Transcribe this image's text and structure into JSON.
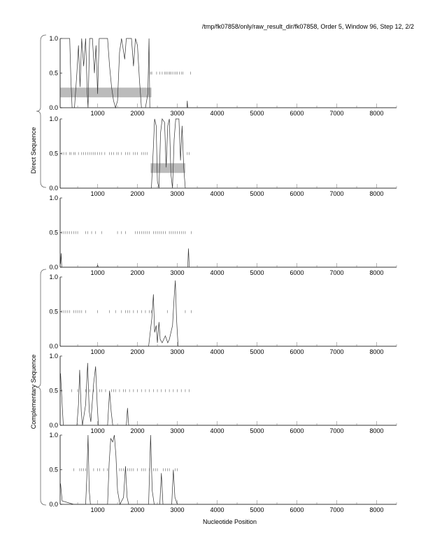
{
  "chart_data": {
    "type": "line",
    "title": "/tmp/fk07858/only/raw_result_dir/fk07858, Order 5, Window 96, Step 12, 2/2",
    "xlabel": "Nucleotide Position",
    "group_labels": [
      "Direct Sequence",
      "Complementary Sequence"
    ],
    "xlim": [
      60,
      8500
    ],
    "ylim": [
      0,
      1
    ],
    "xticks": [
      1000,
      2000,
      3000,
      4000,
      5000,
      6000,
      7000,
      8000
    ],
    "yticks": [
      "0.0",
      "0.5",
      "1.0"
    ],
    "panels": [
      {
        "name": "direct-frame-1",
        "group": "Direct Sequence",
        "series": [
          [
            70,
            1
          ],
          [
            300,
            1
          ],
          [
            330,
            0.4
          ],
          [
            360,
            0
          ],
          [
            420,
            0
          ],
          [
            480,
            0.5
          ],
          [
            520,
            0.9
          ],
          [
            560,
            0.3
          ],
          [
            600,
            1
          ],
          [
            650,
            0.6
          ],
          [
            700,
            1
          ],
          [
            740,
            0.2
          ],
          [
            760,
            0
          ],
          [
            800,
            1
          ],
          [
            870,
            1
          ],
          [
            920,
            0.5
          ],
          [
            960,
            0.9
          ],
          [
            1000,
            0.2
          ],
          [
            1040,
            1
          ],
          [
            1250,
            1
          ],
          [
            1300,
            0.6
          ],
          [
            1350,
            0.3
          ],
          [
            1400,
            0.1
          ],
          [
            1450,
            0
          ],
          [
            1500,
            0.1
          ],
          [
            1550,
            0.8
          ],
          [
            1600,
            1
          ],
          [
            1680,
            0.7
          ],
          [
            1720,
            1
          ],
          [
            1850,
            1
          ],
          [
            1900,
            0.6
          ],
          [
            1950,
            1
          ],
          [
            2000,
            0.9
          ],
          [
            2050,
            0.4
          ],
          [
            2100,
            0
          ],
          [
            2200,
            0
          ],
          [
            2260,
            0.2
          ],
          [
            2290,
            1
          ],
          [
            2310,
            0
          ],
          [
            3240,
            0
          ],
          [
            3250,
            0.1
          ],
          [
            3260,
            0
          ],
          [
            8500,
            0
          ]
        ],
        "stops": [
          2300,
          2330,
          2360,
          2480,
          2560,
          2620,
          2680,
          2720,
          2760,
          2800,
          2830,
          2870,
          2920,
          2960,
          3000,
          3050,
          3100,
          3140,
          3330
        ],
        "genes": [
          [
            70,
            2350,
            0.15,
            0.29
          ]
        ]
      },
      {
        "name": "direct-frame-2",
        "group": "Direct Sequence",
        "series": [
          [
            70,
            0
          ],
          [
            2350,
            0
          ],
          [
            2400,
            0.6
          ],
          [
            2430,
            1
          ],
          [
            2470,
            0.9
          ],
          [
            2500,
            0.1
          ],
          [
            2540,
            0
          ],
          [
            2580,
            0.8
          ],
          [
            2620,
            1
          ],
          [
            2680,
            0.95
          ],
          [
            2720,
            0.3
          ],
          [
            2760,
            0.9
          ],
          [
            2800,
            1
          ],
          [
            2840,
            0.2
          ],
          [
            2880,
            0
          ],
          [
            2920,
            0.7
          ],
          [
            2960,
            1
          ],
          [
            3040,
            1
          ],
          [
            3080,
            0.4
          ],
          [
            3120,
            0.9
          ],
          [
            3160,
            0.3
          ],
          [
            3200,
            0
          ],
          [
            8500,
            0
          ]
        ],
        "stops": [
          100,
          150,
          210,
          300,
          330,
          400,
          440,
          520,
          600,
          650,
          700,
          750,
          800,
          850,
          900,
          940,
          1000,
          1050,
          1100,
          1180,
          1300,
          1350,
          1400,
          1480,
          1520,
          1600,
          1700,
          1750,
          1800,
          1900,
          1950,
          2000,
          2100,
          2150,
          2200,
          2250,
          3250,
          3300
        ],
        "genes": [
          [
            2330,
            3200,
            0.22,
            0.36
          ]
        ]
      },
      {
        "name": "direct-frame-3",
        "group": "Direct Sequence",
        "series": [
          [
            70,
            0.05
          ],
          [
            85,
            0.2
          ],
          [
            100,
            0
          ],
          [
            980,
            0
          ],
          [
            1000,
            0.03
          ],
          [
            1020,
            0
          ],
          [
            3260,
            0
          ],
          [
            3280,
            0.27
          ],
          [
            3300,
            0
          ],
          [
            8500,
            0
          ]
        ],
        "stops": [
          100,
          150,
          200,
          250,
          300,
          350,
          400,
          450,
          500,
          700,
          750,
          850,
          950,
          1100,
          1500,
          1600,
          1700,
          1950,
          2000,
          2050,
          2100,
          2150,
          2200,
          2250,
          2300,
          2400,
          2450,
          2500,
          2550,
          2600,
          2650,
          2700,
          2800,
          2850,
          2900,
          2950,
          3000,
          3050,
          3100,
          3150,
          3200,
          3350
        ],
        "genes": []
      },
      {
        "name": "complementary-frame-1",
        "group": "Complementary Sequence",
        "series": [
          [
            70,
            0
          ],
          [
            2280,
            0
          ],
          [
            2320,
            0.2
          ],
          [
            2360,
            0.4
          ],
          [
            2400,
            0.75
          ],
          [
            2430,
            0.2
          ],
          [
            2470,
            0.3
          ],
          [
            2500,
            0.05
          ],
          [
            2540,
            0.35
          ],
          [
            2570,
            0.1
          ],
          [
            2620,
            0.05
          ],
          [
            2700,
            0.15
          ],
          [
            2760,
            0.05
          ],
          [
            2800,
            0.1
          ],
          [
            2880,
            0.3
          ],
          [
            2920,
            0.7
          ],
          [
            2950,
            0.95
          ],
          [
            2980,
            0.4
          ],
          [
            3020,
            0
          ],
          [
            8500,
            0
          ]
        ],
        "stops": [
          100,
          150,
          200,
          250,
          300,
          400,
          450,
          500,
          550,
          600,
          700,
          1000,
          1300,
          1450,
          1600,
          1700,
          1750,
          1800,
          1900,
          2000,
          2100,
          2200,
          2300,
          2350,
          2750,
          3200,
          3350
        ],
        "genes": []
      },
      {
        "name": "complementary-frame-2",
        "group": "Complementary Sequence",
        "series": [
          [
            70,
            0.75
          ],
          [
            110,
            0.3
          ],
          [
            140,
            0
          ],
          [
            480,
            0
          ],
          [
            520,
            0.3
          ],
          [
            550,
            0.8
          ],
          [
            590,
            0.2
          ],
          [
            620,
            0
          ],
          [
            700,
            0.3
          ],
          [
            750,
            0.9
          ],
          [
            790,
            0.2
          ],
          [
            830,
            0.05
          ],
          [
            900,
            0.6
          ],
          [
            950,
            0.85
          ],
          [
            990,
            0.3
          ],
          [
            1020,
            0
          ],
          [
            1250,
            0
          ],
          [
            1300,
            0.5
          ],
          [
            1340,
            0.2
          ],
          [
            1380,
            0
          ],
          [
            1720,
            0
          ],
          [
            1750,
            0.25
          ],
          [
            1780,
            0
          ],
          [
            8500,
            0
          ]
        ],
        "stops": [
          100,
          350,
          500,
          700,
          800,
          900,
          1050,
          1100,
          1200,
          1350,
          1400,
          1450,
          1550,
          1650,
          1700,
          1800,
          1900,
          2000,
          2100,
          2200,
          2300,
          2400,
          2500,
          2600,
          2700,
          2800,
          2900,
          3000,
          3100,
          3200,
          3300
        ],
        "genes": []
      },
      {
        "name": "complementary-frame-3",
        "group": "Complementary Sequence",
        "series": [
          [
            70,
            0.3
          ],
          [
            110,
            0.05
          ],
          [
            400,
            0
          ],
          [
            700,
            0
          ],
          [
            730,
            0.4
          ],
          [
            760,
            1
          ],
          [
            790,
            0.2
          ],
          [
            820,
            0
          ],
          [
            1250,
            0
          ],
          [
            1290,
            0.6
          ],
          [
            1330,
            0.95
          ],
          [
            1380,
            0.9
          ],
          [
            1420,
            1
          ],
          [
            1460,
            0.7
          ],
          [
            1500,
            0.2
          ],
          [
            1560,
            0
          ],
          [
            1650,
            0.1
          ],
          [
            1700,
            0.55
          ],
          [
            1740,
            0.1
          ],
          [
            1780,
            0
          ],
          [
            2280,
            0
          ],
          [
            2330,
            1
          ],
          [
            2370,
            0.2
          ],
          [
            2420,
            0
          ],
          [
            2560,
            0
          ],
          [
            2600,
            0.45
          ],
          [
            2640,
            0
          ],
          [
            2860,
            0
          ],
          [
            2900,
            0.5
          ],
          [
            2940,
            0.1
          ],
          [
            3000,
            0
          ],
          [
            8500,
            0
          ]
        ],
        "stops": [
          400,
          550,
          600,
          650,
          700,
          900,
          1000,
          1050,
          1150,
          1250,
          1550,
          1600,
          1650,
          1750,
          1800,
          1850,
          1900,
          2000,
          2100,
          2150,
          2200,
          2300,
          2400,
          2450,
          2500,
          2650,
          2700,
          2750,
          2800,
          2950,
          3000
        ],
        "genes": []
      }
    ]
  }
}
